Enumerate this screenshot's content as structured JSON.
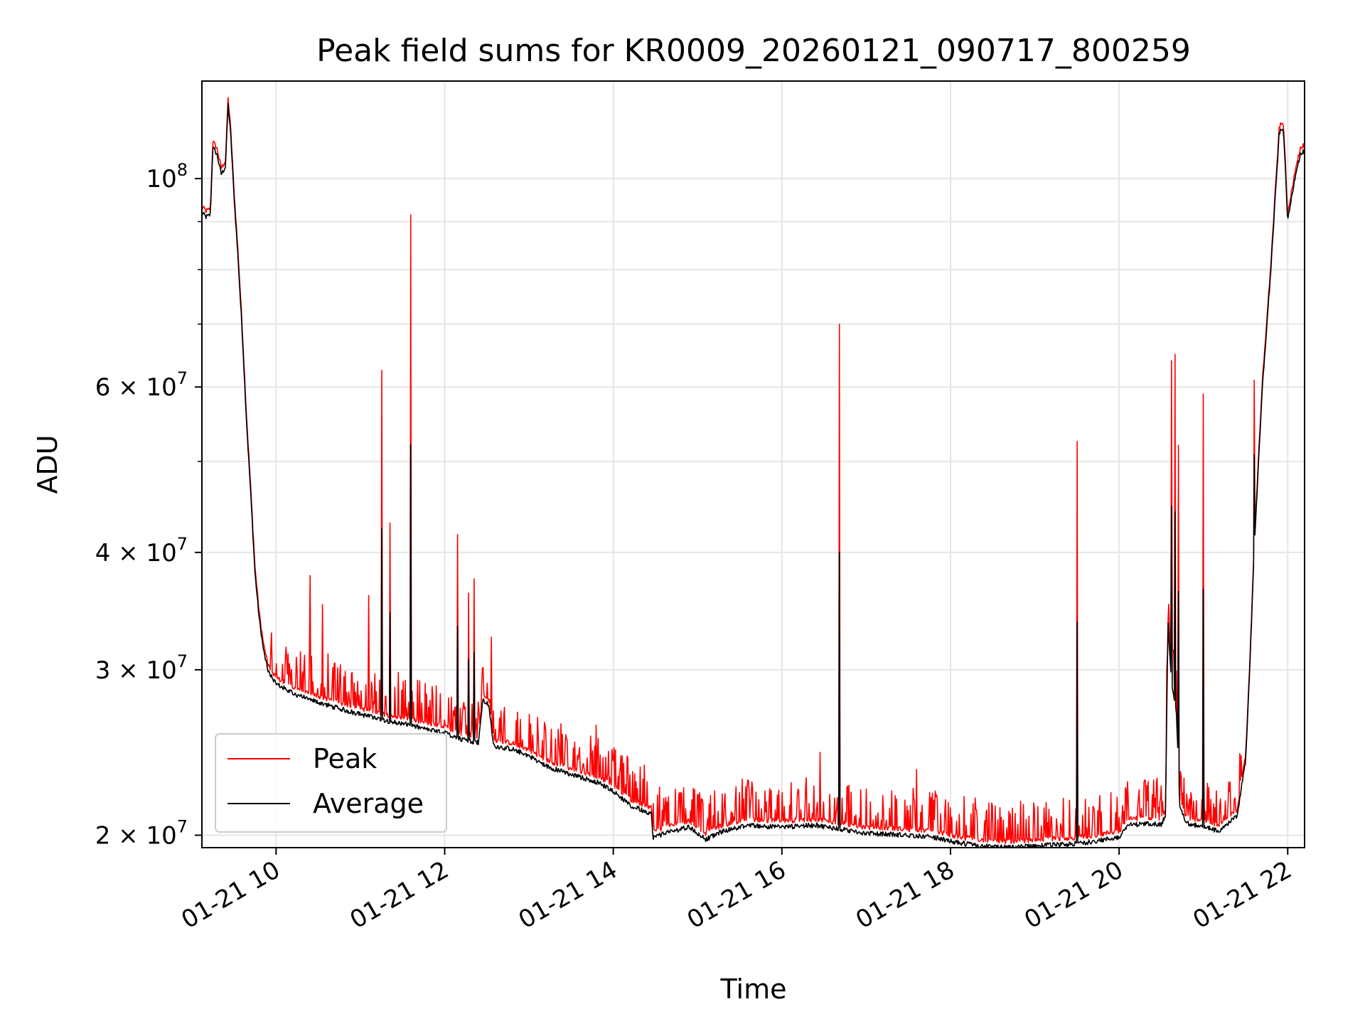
{
  "chart_data": {
    "type": "line",
    "title": "Peak field sums for KR0009_20260121_090717_800259",
    "xlabel": "Time",
    "ylabel": "ADU",
    "yscale": "log",
    "grid": true,
    "legend_position": "lower-left",
    "xlim": [
      9.12,
      22.2
    ],
    "ylim": [
      19400000,
      127000000
    ],
    "x_unit": "hour of 2026-01-21",
    "x_ticks": [
      {
        "value": 10,
        "label": "01-21 10"
      },
      {
        "value": 12,
        "label": "01-21 12"
      },
      {
        "value": 14,
        "label": "01-21 14"
      },
      {
        "value": 16,
        "label": "01-21 16"
      },
      {
        "value": 18,
        "label": "01-21 18"
      },
      {
        "value": 20,
        "label": "01-21 20"
      },
      {
        "value": 22,
        "label": "01-21 22"
      }
    ],
    "y_ticks_major": [
      {
        "value": 20000000,
        "mantissa": "2",
        "base": "10",
        "exp": "7"
      },
      {
        "value": 30000000,
        "mantissa": "3",
        "base": "10",
        "exp": "7"
      },
      {
        "value": 40000000,
        "mantissa": "4",
        "base": "10",
        "exp": "7"
      },
      {
        "value": 60000000,
        "mantissa": "6",
        "base": "10",
        "exp": "7"
      },
      {
        "value": 100000000,
        "mantissa": "",
        "base": "10",
        "exp": "8"
      }
    ],
    "y_ticks_minor": [
      50000000,
      70000000,
      80000000,
      90000000
    ],
    "colors": {
      "peak": "#ff0000",
      "average": "#000000"
    },
    "series": [
      {
        "name": "Average",
        "color": "#000000",
        "points": [
          [
            9.12,
            92000000
          ],
          [
            9.17,
            91000000
          ],
          [
            9.22,
            91500000
          ],
          [
            9.25,
            108000000
          ],
          [
            9.3,
            106000000
          ],
          [
            9.35,
            101000000
          ],
          [
            9.4,
            103000000
          ],
          [
            9.43,
            120000000
          ],
          [
            9.46,
            112000000
          ],
          [
            9.5,
            96000000
          ],
          [
            9.55,
            82000000
          ],
          [
            9.6,
            68000000
          ],
          [
            9.65,
            55000000
          ],
          [
            9.7,
            46000000
          ],
          [
            9.75,
            38000000
          ],
          [
            9.8,
            34000000
          ],
          [
            9.85,
            31500000
          ],
          [
            9.9,
            30000000
          ],
          [
            10.0,
            29000000
          ],
          [
            10.2,
            28300000
          ],
          [
            10.5,
            27700000
          ],
          [
            10.8,
            27200000
          ],
          [
            11.0,
            26900000
          ],
          [
            11.3,
            26500000
          ],
          [
            11.5,
            26300000
          ],
          [
            11.8,
            25900000
          ],
          [
            12.0,
            25700000
          ],
          [
            12.1,
            25500000
          ],
          [
            12.2,
            25300000
          ],
          [
            12.4,
            25100000
          ],
          [
            12.45,
            27800000
          ],
          [
            12.52,
            27600000
          ],
          [
            12.58,
            24900000
          ],
          [
            12.8,
            24700000
          ],
          [
            13.0,
            24300000
          ],
          [
            13.2,
            23700000
          ],
          [
            13.5,
            23200000
          ],
          [
            13.8,
            22800000
          ],
          [
            14.0,
            22300000
          ],
          [
            14.2,
            21500000
          ],
          [
            14.45,
            21100000
          ],
          [
            14.47,
            19900000
          ],
          [
            14.7,
            20200000
          ],
          [
            14.9,
            20400000
          ],
          [
            15.1,
            19800000
          ],
          [
            15.3,
            20200000
          ],
          [
            15.6,
            20500000
          ],
          [
            16.0,
            20400000
          ],
          [
            16.4,
            20500000
          ],
          [
            16.7,
            20300000
          ],
          [
            17.0,
            20100000
          ],
          [
            17.5,
            20000000
          ],
          [
            17.8,
            19900000
          ],
          [
            18.0,
            19700000
          ],
          [
            18.3,
            19500000
          ],
          [
            18.7,
            19400000
          ],
          [
            19.0,
            19500000
          ],
          [
            19.4,
            19550000
          ],
          [
            19.7,
            19700000
          ],
          [
            20.0,
            19900000
          ],
          [
            20.1,
            20500000
          ],
          [
            20.4,
            20600000
          ],
          [
            20.5,
            20500000
          ],
          [
            20.55,
            21000000
          ],
          [
            20.58,
            34000000
          ],
          [
            20.62,
            29000000
          ],
          [
            20.68,
            27000000
          ],
          [
            20.72,
            21500000
          ],
          [
            20.8,
            20600000
          ],
          [
            21.0,
            20400000
          ],
          [
            21.2,
            20200000
          ],
          [
            21.4,
            21000000
          ],
          [
            21.5,
            24000000
          ],
          [
            21.55,
            30000000
          ],
          [
            21.6,
            40000000
          ],
          [
            21.7,
            60000000
          ],
          [
            21.8,
            80000000
          ],
          [
            21.9,
            112000000
          ],
          [
            21.95,
            113000000
          ],
          [
            22.0,
            90000000
          ],
          [
            22.05,
            96000000
          ],
          [
            22.1,
            102000000
          ],
          [
            22.15,
            106000000
          ],
          [
            22.2,
            107000000
          ]
        ]
      },
      {
        "name": "Peak",
        "color": "#ff0000",
        "baseline_offset_ratio": 1.015,
        "spikes": [
          [
            10.25,
            29500000
          ],
          [
            10.4,
            37800000
          ],
          [
            10.42,
            31000000
          ],
          [
            10.55,
            35200000
          ],
          [
            10.62,
            31200000
          ],
          [
            10.7,
            30500000
          ],
          [
            10.8,
            29500000
          ],
          [
            10.9,
            29800000
          ],
          [
            11.1,
            36000000
          ],
          [
            11.25,
            62500000
          ],
          [
            11.35,
            43000000
          ],
          [
            11.45,
            29800000
          ],
          [
            11.6,
            91500000
          ],
          [
            11.7,
            29200000
          ],
          [
            11.85,
            28800000
          ],
          [
            11.95,
            28300000
          ],
          [
            12.05,
            28000000
          ],
          [
            12.15,
            41800000
          ],
          [
            12.28,
            36200000
          ],
          [
            12.35,
            37500000
          ],
          [
            12.55,
            32500000
          ],
          [
            12.7,
            26800000
          ],
          [
            12.85,
            26500000
          ],
          [
            13.0,
            26900000
          ],
          [
            13.2,
            25800000
          ],
          [
            13.45,
            25200000
          ],
          [
            13.6,
            24800000
          ],
          [
            13.8,
            26200000
          ],
          [
            14.0,
            24000000
          ],
          [
            14.2,
            23200000
          ],
          [
            14.4,
            22800000
          ],
          [
            14.6,
            21900000
          ],
          [
            14.8,
            22200000
          ],
          [
            15.0,
            22100000
          ],
          [
            15.2,
            22300000
          ],
          [
            15.5,
            22200000
          ],
          [
            15.8,
            22300000
          ],
          [
            16.0,
            22200000
          ],
          [
            16.2,
            22300000
          ],
          [
            16.45,
            24500000
          ],
          [
            16.68,
            70000000
          ],
          [
            16.8,
            22600000
          ],
          [
            17.0,
            22400000
          ],
          [
            17.3,
            22300000
          ],
          [
            17.6,
            23500000
          ],
          [
            17.8,
            21800000
          ],
          [
            18.0,
            21400000
          ],
          [
            18.3,
            21300000
          ],
          [
            18.6,
            20900000
          ],
          [
            18.9,
            20800000
          ],
          [
            19.2,
            20900000
          ],
          [
            19.5,
            52500000
          ],
          [
            19.7,
            21400000
          ],
          [
            19.9,
            22200000
          ],
          [
            20.1,
            22800000
          ],
          [
            20.3,
            22900000
          ],
          [
            20.45,
            23000000
          ],
          [
            20.62,
            64000000
          ],
          [
            20.66,
            65000000
          ],
          [
            20.7,
            52000000
          ],
          [
            20.85,
            22200000
          ],
          [
            21.0,
            59000000
          ],
          [
            21.15,
            22300000
          ],
          [
            21.3,
            22800000
          ],
          [
            21.45,
            24300000
          ],
          [
            21.6,
            61000000
          ],
          [
            21.7,
            61500000
          ]
        ]
      }
    ]
  }
}
